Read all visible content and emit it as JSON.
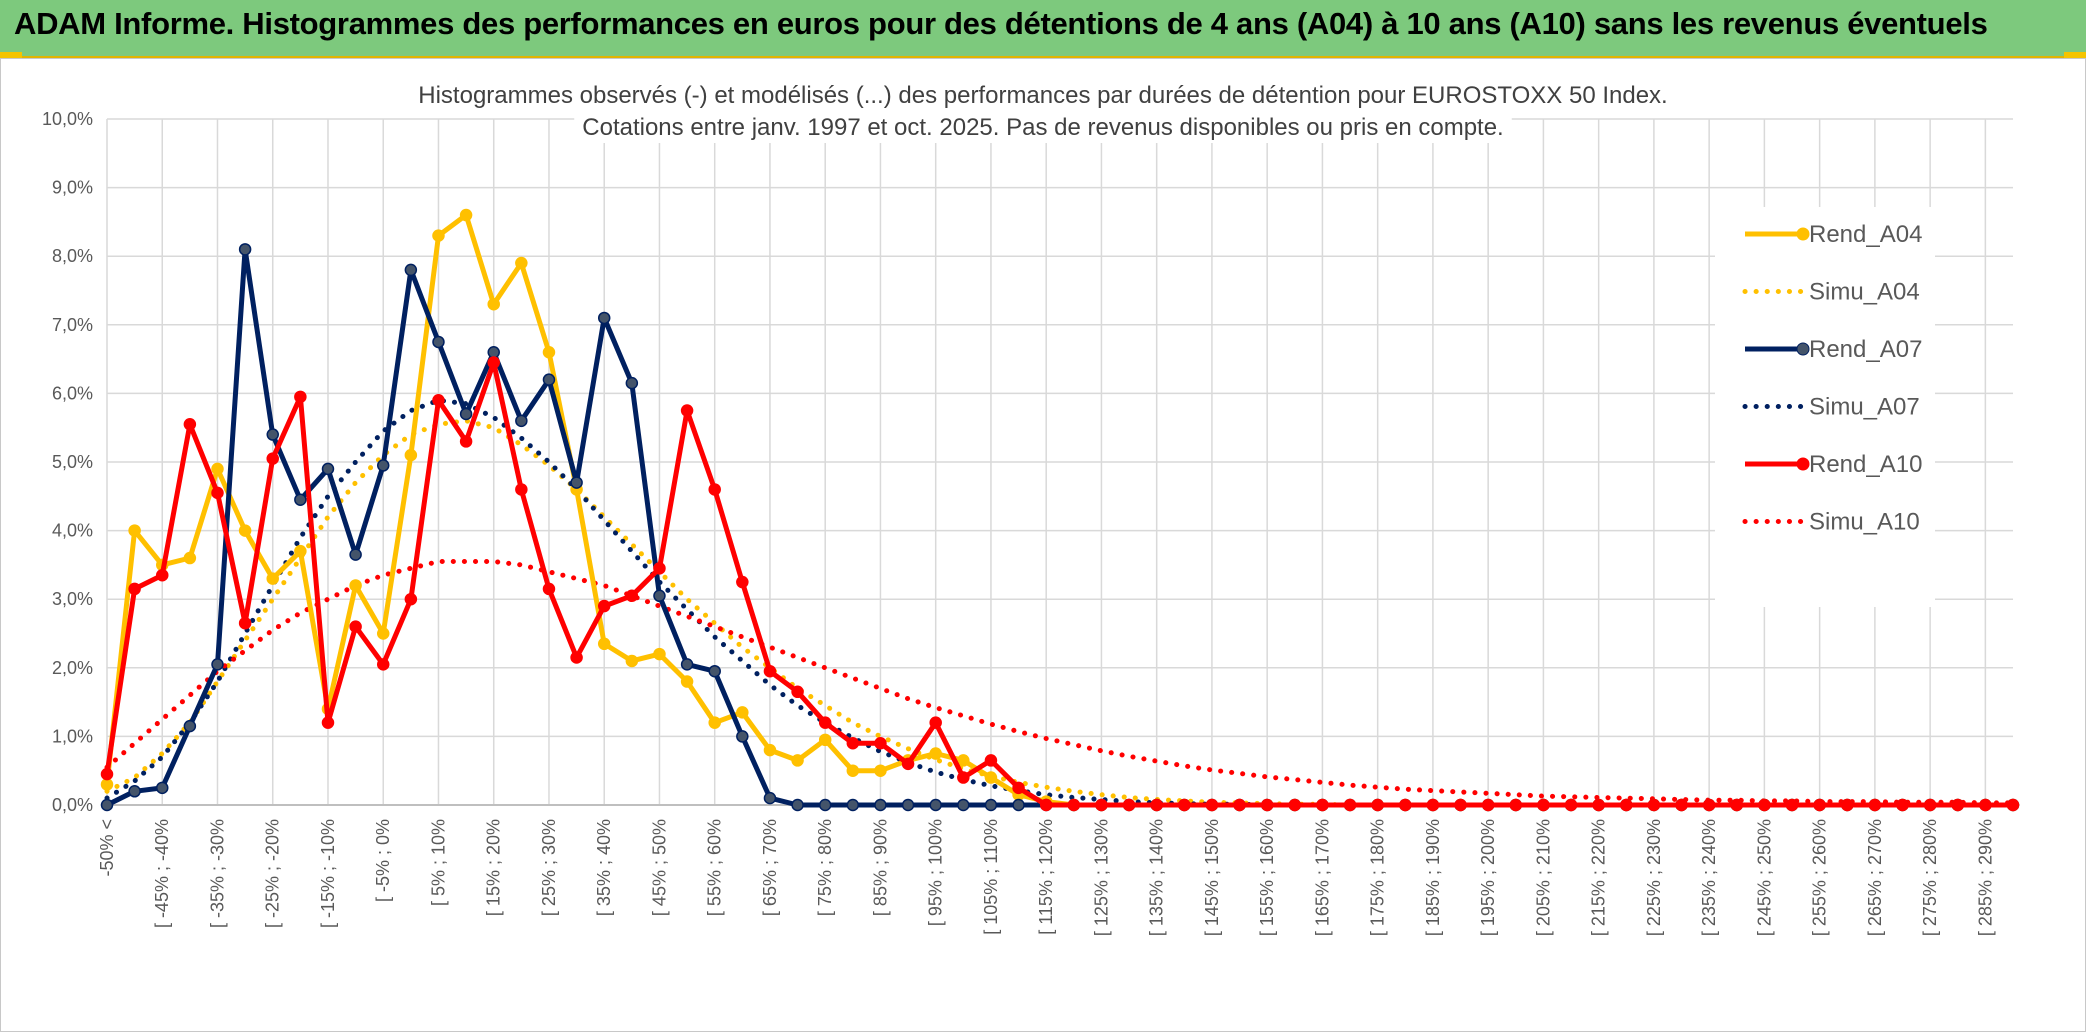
{
  "banner": {
    "title": "ADAM Informe. Histogrammes des performances en euros pour des détentions de 4 ans (A04) à 10 ans (A10) sans les revenus éventuels"
  },
  "colors": {
    "banner_bg": "#7dc97d",
    "rend_a04": "#ffc000",
    "rend_a07": "#002060",
    "rend_a10": "#ff0000",
    "grid": "#d9d9d9"
  },
  "chart_data": {
    "type": "line",
    "title_lines": [
      "Histogrammes observés (-) et modélisés (...) des performances par durées de détention pour EUROSTOXX 50 Index.",
      "Cotations entre janv. 1997 et oct. 2025. Pas de revenus disponibles ou pris en compte."
    ],
    "ylim": [
      0,
      10
    ],
    "yticks": [
      "0,0%",
      "1,0%",
      "2,0%",
      "3,0%",
      "4,0%",
      "5,0%",
      "6,0%",
      "7,0%",
      "8,0%",
      "9,0%",
      "10,0%"
    ],
    "xlabels": [
      "-50% <",
      "[ -45% ; -40%",
      "[ -35% ; -30%",
      "[ -25% ; -20%",
      "[ -15% ; -10%",
      "[ -5% ; 0%",
      "[ 5% ; 10%",
      "[ 15% ; 20%",
      "[ 25% ; 30%",
      "[ 35% ; 40%",
      "[ 45% ; 50%",
      "[ 55% ; 60%",
      "[ 65% ; 70%",
      "[ 75% ; 80%",
      "[ 85% ; 90%",
      "[ 95% ; 100%",
      "[ 105% ; 110%",
      "[ 115% ; 120%",
      "[ 125% ; 130%",
      "[ 135% ; 140%",
      "[ 145% ; 150%",
      "[ 155% ; 160%",
      "[ 165% ; 170%",
      "[ 175% ; 180%",
      "[ 185% ; 190%",
      "[ 195% ; 200%",
      "[ 205% ; 210%",
      "[ 215% ; 220%",
      "[ 225% ; 230%",
      "[ 235% ; 240%",
      "[ 245% ; 250%",
      "[ 255% ; 260%",
      "[ 265% ; 270%",
      "[ 275% ; 280%",
      "[ 285% ; 290%"
    ],
    "n_categories": 70,
    "series": [
      {
        "name": "Rend_A04",
        "style": "solid",
        "color": "#ffc000",
        "values": [
          0.3,
          4.0,
          3.5,
          3.6,
          4.9,
          4.0,
          3.3,
          3.7,
          1.4,
          3.2,
          2.5,
          5.1,
          8.3,
          8.6,
          7.3,
          7.9,
          6.6,
          4.6,
          2.35,
          2.1,
          2.2,
          1.8,
          1.2,
          1.35,
          0.8,
          0.65,
          0.95,
          0.5,
          0.5,
          0.65,
          0.75,
          0.65,
          0.4,
          0.15,
          0.05,
          0,
          0,
          0,
          0,
          0,
          0,
          0,
          0,
          0,
          0,
          0,
          0,
          0,
          0,
          0,
          0,
          0,
          0,
          0,
          0,
          0,
          0,
          0,
          0,
          0,
          0,
          0,
          0,
          0,
          0,
          0,
          0,
          0,
          0,
          0
        ]
      },
      {
        "name": "Simu_A04",
        "style": "dotted",
        "color": "#ffc000",
        "values": [
          0.2,
          0.4,
          0.75,
          1.2,
          1.8,
          2.4,
          3.0,
          3.6,
          4.2,
          4.7,
          5.1,
          5.4,
          5.55,
          5.6,
          5.5,
          5.25,
          4.95,
          4.6,
          4.2,
          3.8,
          3.4,
          3.0,
          2.65,
          2.3,
          2.0,
          1.7,
          1.45,
          1.2,
          1.0,
          0.82,
          0.66,
          0.53,
          0.42,
          0.33,
          0.26,
          0.2,
          0.15,
          0.11,
          0.08,
          0.06,
          0.04,
          0.03,
          0.02,
          0.01,
          0.01,
          0,
          0,
          0,
          0,
          0,
          0,
          0,
          0,
          0,
          0,
          0,
          0,
          0,
          0,
          0,
          0,
          0,
          0,
          0,
          0,
          0,
          0,
          0,
          0,
          0
        ]
      },
      {
        "name": "Rend_A07",
        "style": "solid",
        "color": "#002060",
        "values": [
          0.0,
          0.2,
          0.25,
          1.15,
          2.05,
          8.1,
          5.4,
          4.45,
          4.9,
          3.65,
          4.95,
          7.8,
          6.75,
          5.7,
          6.6,
          5.6,
          6.2,
          4.7,
          7.1,
          6.15,
          3.05,
          2.05,
          1.95,
          1.0,
          0.1,
          0,
          0,
          0,
          0,
          0,
          0,
          0,
          0,
          0,
          0,
          0,
          0,
          0,
          0,
          0,
          0,
          0,
          0,
          0,
          0,
          0,
          0,
          0,
          0,
          0,
          0,
          0,
          0,
          0,
          0,
          0,
          0,
          0,
          0,
          0,
          0,
          0,
          0,
          0,
          0,
          0,
          0,
          0,
          0,
          0
        ]
      },
      {
        "name": "Simu_A07",
        "style": "dotted",
        "color": "#002060",
        "values": [
          0.1,
          0.35,
          0.7,
          1.2,
          1.8,
          2.5,
          3.2,
          3.9,
          4.5,
          5.0,
          5.45,
          5.75,
          5.9,
          5.85,
          5.65,
          5.35,
          5.0,
          4.6,
          4.15,
          3.7,
          3.25,
          2.85,
          2.45,
          2.1,
          1.75,
          1.45,
          1.2,
          0.98,
          0.78,
          0.62,
          0.48,
          0.37,
          0.28,
          0.21,
          0.15,
          0.11,
          0.08,
          0.05,
          0.03,
          0.02,
          0.01,
          0.01,
          0,
          0,
          0,
          0,
          0,
          0,
          0,
          0,
          0,
          0,
          0,
          0,
          0,
          0,
          0,
          0,
          0,
          0,
          0,
          0,
          0,
          0,
          0,
          0,
          0,
          0,
          0,
          0
        ]
      },
      {
        "name": "Rend_A10",
        "style": "solid",
        "color": "#ff0000",
        "values": [
          0.45,
          3.15,
          3.35,
          5.55,
          4.55,
          2.65,
          5.05,
          5.95,
          1.2,
          2.6,
          2.05,
          3.0,
          5.9,
          5.3,
          6.45,
          4.6,
          3.15,
          2.15,
          2.9,
          3.05,
          3.45,
          5.75,
          4.6,
          3.25,
          1.95,
          1.65,
          1.2,
          0.9,
          0.9,
          0.6,
          1.2,
          0.4,
          0.65,
          0.25,
          0,
          0,
          0,
          0,
          0,
          0,
          0,
          0,
          0,
          0,
          0,
          0,
          0,
          0,
          0,
          0,
          0,
          0,
          0,
          0,
          0,
          0,
          0,
          0,
          0,
          0,
          0,
          0,
          0,
          0,
          0,
          0,
          0,
          0,
          0,
          0
        ]
      },
      {
        "name": "Simu_A10",
        "style": "dotted",
        "color": "#ff0000",
        "values": [
          0.55,
          0.9,
          1.25,
          1.6,
          1.95,
          2.25,
          2.55,
          2.8,
          3.0,
          3.2,
          3.35,
          3.45,
          3.55,
          3.55,
          3.55,
          3.5,
          3.4,
          3.3,
          3.2,
          3.05,
          2.9,
          2.75,
          2.6,
          2.45,
          2.3,
          2.15,
          2.0,
          1.85,
          1.7,
          1.55,
          1.42,
          1.3,
          1.18,
          1.07,
          0.97,
          0.88,
          0.79,
          0.71,
          0.64,
          0.57,
          0.51,
          0.46,
          0.41,
          0.37,
          0.33,
          0.29,
          0.26,
          0.23,
          0.21,
          0.19,
          0.17,
          0.15,
          0.13,
          0.12,
          0.11,
          0.1,
          0.09,
          0.08,
          0.07,
          0.07,
          0.06,
          0.06,
          0.05,
          0.05,
          0.05,
          0.04,
          0.04,
          0.04,
          0.03,
          0.03
        ]
      }
    ],
    "legend": {
      "position": "right",
      "entries": [
        "Rend_A04",
        "Simu_A04",
        "Rend_A07",
        "Simu_A07",
        "Rend_A10",
        "Simu_A10"
      ]
    }
  }
}
